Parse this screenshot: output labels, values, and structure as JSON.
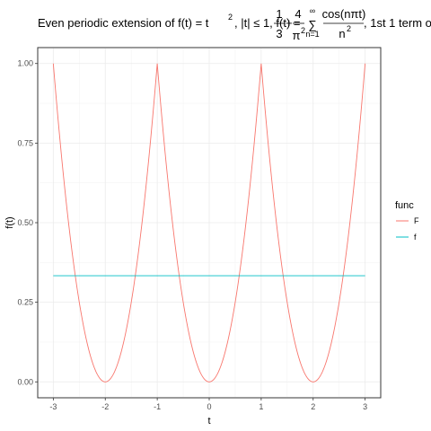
{
  "title": {
    "prefix": "Even periodic extension of f(t) = t",
    "exp": "2",
    "cond": ",  |t| ≤ 1,  f(t) = ",
    "frac1_num": "1",
    "frac1_den": "3",
    "plus": "+",
    "frac2_num": "4",
    "frac2_den_base": "π",
    "frac2_den_exp": "2",
    "sum_top": "∞",
    "sum_sym": "∑",
    "sum_bot": "n=1",
    "frac3_num": "cos(nπt)",
    "frac3_den_base": "n",
    "frac3_den_exp": "2",
    "suffix": ",  1st 1 term o"
  },
  "chart_data": {
    "type": "line",
    "xlabel": "t",
    "ylabel": "f(t)",
    "xlim": [
      -3,
      3
    ],
    "ylim": [
      0,
      1
    ],
    "x_ticks": [
      -3,
      -2,
      -1,
      0,
      1,
      2,
      3
    ],
    "x_tick_labels": [
      "-3",
      "-2",
      "-1",
      "0",
      "1",
      "2",
      "3"
    ],
    "y_ticks": [
      0,
      0.25,
      0.5,
      0.75,
      1
    ],
    "y_tick_labels": [
      "0.00",
      "0.25",
      "0.50",
      "0.75",
      "1.00"
    ],
    "grid": true,
    "legend": {
      "title": "func",
      "placement": "right",
      "entries": [
        "F",
        "f"
      ]
    },
    "series": [
      {
        "name": "F",
        "color": "#F8766D",
        "function": "((t + 1) mod 2 - 1)^2",
        "x": [
          -3,
          -2.75,
          -2.5,
          -2.25,
          -2,
          -1.75,
          -1.5,
          -1.25,
          -1,
          -0.75,
          -0.5,
          -0.25,
          0,
          0.25,
          0.5,
          0.75,
          1,
          1.25,
          1.5,
          1.75,
          2,
          2.25,
          2.5,
          2.75,
          3
        ],
        "y": [
          1,
          0.5625,
          0.25,
          0.0625,
          0,
          0.0625,
          0.25,
          0.5625,
          1,
          0.5625,
          0.25,
          0.0625,
          0,
          0.0625,
          0.25,
          0.5625,
          1,
          0.5625,
          0.25,
          0.0625,
          0,
          0.0625,
          0.25,
          0.5625,
          1
        ]
      },
      {
        "name": "f",
        "color": "#00BFC4",
        "function": "1/3",
        "x": [
          -3,
          3
        ],
        "y": [
          0.3333,
          0.3333
        ]
      }
    ]
  }
}
